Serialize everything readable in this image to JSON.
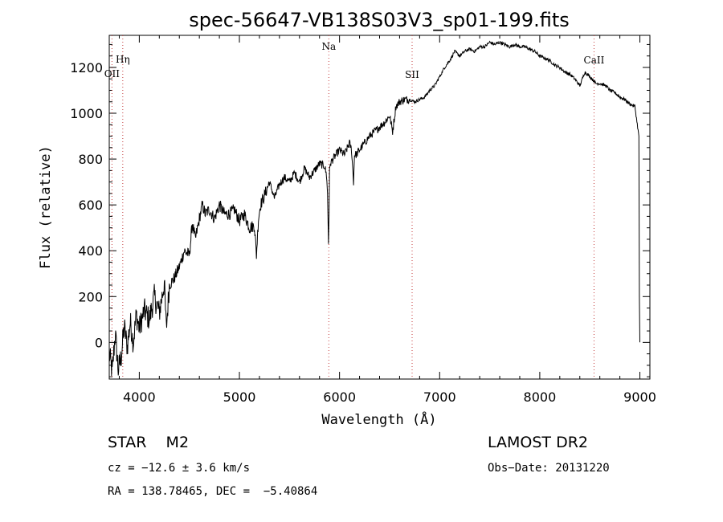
{
  "chart_data": {
    "type": "line",
    "title": "spec-56647-VB138S03V3_sp01-199.fits",
    "xlabel": "Wavelength (Å)",
    "ylabel": "Flux (relative)",
    "xlim": [
      3700,
      9100
    ],
    "ylim": [
      -160,
      1340
    ],
    "xticks": [
      4000,
      5000,
      6000,
      7000,
      8000,
      9000
    ],
    "yticks": [
      0,
      200,
      400,
      600,
      800,
      1000,
      1200
    ],
    "grid": false,
    "series": [
      {
        "x": [
          3700,
          3730,
          3760,
          3790,
          3820,
          3850,
          3880,
          3910,
          3940,
          3970,
          4000,
          4050,
          4100,
          4150,
          4200,
          4250,
          4270,
          4300,
          4350,
          4400,
          4450,
          4500,
          4530,
          4560,
          4600,
          4630,
          4660,
          4700,
          4750,
          4800,
          4850,
          4900,
          4950,
          5000,
          5050,
          5100,
          5150,
          5170,
          5190,
          5210,
          5250,
          5300,
          5350,
          5400,
          5450,
          5500,
          5550,
          5600,
          5650,
          5700,
          5750,
          5800,
          5850,
          5870,
          5880,
          5890,
          5895,
          5900,
          5910,
          5920,
          5950,
          6000,
          6050,
          6100,
          6120,
          6140,
          6150,
          6170,
          6200,
          6250,
          6300,
          6350,
          6400,
          6450,
          6500,
          6530,
          6563,
          6600,
          6650,
          6700,
          6750,
          6800,
          6850,
          6900,
          6950,
          7000,
          7050,
          7100,
          7150,
          7200,
          7250,
          7300,
          7350,
          7400,
          7450,
          7500,
          7550,
          7600,
          7650,
          7700,
          7750,
          7800,
          7850,
          7900,
          7950,
          8000,
          8050,
          8100,
          8150,
          8200,
          8250,
          8300,
          8350,
          8400,
          8450,
          8500,
          8542,
          8560,
          8600,
          8662,
          8700,
          8750,
          8800,
          8850,
          8900,
          8950,
          8990,
          8995,
          9000
        ],
        "y": [
          -50,
          -130,
          40,
          -120,
          -60,
          70,
          -20,
          90,
          0,
          120,
          60,
          140,
          100,
          200,
          130,
          260,
          60,
          250,
          280,
          330,
          400,
          380,
          520,
          450,
          540,
          600,
          560,
          580,
          540,
          600,
          560,
          560,
          580,
          530,
          560,
          500,
          510,
          380,
          540,
          600,
          640,
          700,
          630,
          690,
          720,
          700,
          740,
          700,
          760,
          720,
          750,
          780,
          770,
          730,
          650,
          430,
          560,
          760,
          780,
          790,
          810,
          840,
          820,
          870,
          840,
          700,
          820,
          820,
          840,
          870,
          900,
          920,
          940,
          960,
          990,
          920,
          1030,
          1050,
          1060,
          1060,
          1050,
          1060,
          1070,
          1100,
          1120,
          1160,
          1200,
          1230,
          1270,
          1250,
          1270,
          1280,
          1270,
          1290,
          1290,
          1310,
          1300,
          1310,
          1300,
          1290,
          1300,
          1290,
          1290,
          1280,
          1270,
          1250,
          1240,
          1230,
          1210,
          1200,
          1180,
          1170,
          1150,
          1120,
          1180,
          1160,
          1140,
          1130,
          1130,
          1120,
          1100,
          1090,
          1070,
          1060,
          1040,
          1030,
          900,
          200,
          0
        ]
      }
    ],
    "annotations": [
      {
        "label": "OII",
        "x": 3727
      },
      {
        "label": "Hη",
        "x": 3835
      },
      {
        "label": "Na",
        "x": 5893
      },
      {
        "label": "SII",
        "x": 6725
      },
      {
        "label": "CaII",
        "x": 8542
      }
    ]
  },
  "info": {
    "object_class": "STAR    M2",
    "survey": "LAMOST DR2",
    "redshift": "cz = −12.6 ± 3.6 km/s",
    "obs_date": "Obs−Date: 20131220",
    "coords": "RA = 138.78465, DEC =  −5.40864"
  }
}
